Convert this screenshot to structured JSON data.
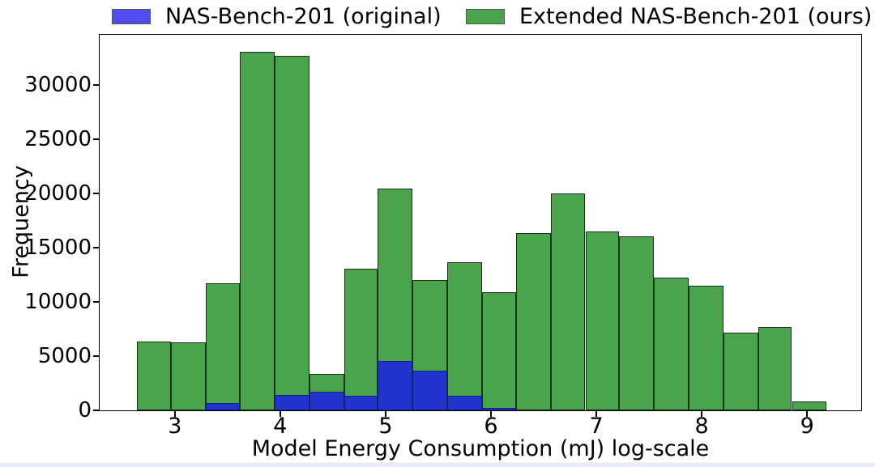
{
  "figure": {
    "background": "#ffffff",
    "bottom_strip_color": "#e8edf9",
    "spine_color": "#000000"
  },
  "legend": {
    "position": "top",
    "items": [
      {
        "label": "NAS-Bench-201 (original)",
        "swatch_color": "#4d4df0",
        "swatch_edge": "#555555"
      },
      {
        "label": "Extended NAS-Bench-201 (ours)",
        "swatch_color": "#4aa44c",
        "swatch_edge": "#555555"
      }
    ]
  },
  "chart_data": {
    "type": "bar",
    "subtype": "overlaid-histogram",
    "title": "",
    "xlabel": "Model Energy Consumption (mJ) log-scale",
    "ylabel": "Frequency",
    "xlim": [
      2.29,
      9.51
    ],
    "ylim": [
      0,
      34600
    ],
    "x_ticks": [
      3,
      4,
      5,
      6,
      7,
      8,
      9
    ],
    "y_ticks": [
      0,
      5000,
      10000,
      15000,
      20000,
      25000,
      30000
    ],
    "grid": false,
    "legend_position": "top",
    "bin_edges": [
      2.64,
      2.97,
      3.3,
      3.62,
      3.95,
      4.28,
      4.61,
      4.93,
      5.26,
      5.59,
      5.92,
      6.24,
      6.57,
      6.9,
      7.22,
      7.55,
      7.88,
      8.21,
      8.54,
      8.86,
      9.19
    ],
    "series": [
      {
        "name": "Extended NAS-Bench-201 (ours)",
        "fill": "#4aa44c",
        "edge": "#1e331e",
        "values": [
          6350,
          6250,
          11700,
          33100,
          32750,
          3350,
          13050,
          20450,
          12000,
          13700,
          10950,
          16400,
          20050,
          16500,
          16100,
          12250,
          11500,
          7150,
          7700,
          850
        ]
      },
      {
        "name": "NAS-Bench-201 (original)",
        "fill": "#2134cd",
        "edge": "#121f7c",
        "values": [
          0,
          0,
          700,
          0,
          1400,
          1700,
          1350,
          4550,
          3650,
          1350,
          250,
          0,
          0,
          0,
          0,
          0,
          0,
          0,
          0,
          0
        ]
      }
    ]
  }
}
